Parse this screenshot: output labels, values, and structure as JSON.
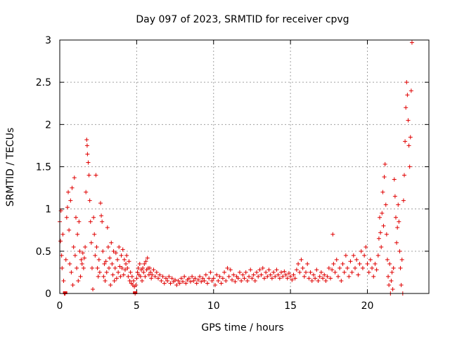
{
  "chart_data": {
    "type": "scatter",
    "title": "Day 097 of 2023, SRMTID for receiver cpvg",
    "xlabel": "GPS time / hours",
    "ylabel": "SRMTID / TECUs",
    "xlim": [
      0,
      24
    ],
    "ylim": [
      0,
      3
    ],
    "xticks": [
      0,
      5,
      10,
      15,
      20
    ],
    "yticks": [
      0,
      0.5,
      1,
      1.5,
      2,
      2.5,
      3
    ],
    "ytick_labels": [
      "0",
      "0.5",
      "1",
      "1.5",
      "2",
      "2.5",
      "3"
    ],
    "grid": true,
    "marker": "+",
    "color": "#e00000",
    "series": [
      {
        "name": "SRMTID",
        "points": [
          [
            0.0,
            0.85
          ],
          [
            0.05,
            0.62
          ],
          [
            0.08,
            0.98
          ],
          [
            0.12,
            0.45
          ],
          [
            0.15,
            0.3
          ],
          [
            0.2,
            0.7
          ],
          [
            0.25,
            0.15
          ],
          [
            0.3,
            0.0
          ],
          [
            0.35,
            0.0
          ],
          [
            0.4,
            0.4
          ],
          [
            0.45,
            0.9
          ],
          [
            0.5,
            1.02
          ],
          [
            0.55,
            1.2
          ],
          [
            0.6,
            0.75
          ],
          [
            0.65,
            0.35
          ],
          [
            0.7,
            1.1
          ],
          [
            0.75,
            0.25
          ],
          [
            0.8,
            1.25
          ],
          [
            0.85,
            0.1
          ],
          [
            0.9,
            0.55
          ],
          [
            0.95,
            1.37
          ],
          [
            1.0,
            0.45
          ],
          [
            1.05,
            0.9
          ],
          [
            1.1,
            0.3
          ],
          [
            1.15,
            0.7
          ],
          [
            1.2,
            0.15
          ],
          [
            1.25,
            0.85
          ],
          [
            1.3,
            0.5
          ],
          [
            1.35,
            0.2
          ],
          [
            1.4,
            0.4
          ],
          [
            1.45,
            0.35
          ],
          [
            1.5,
            0.48
          ],
          [
            1.55,
            0.3
          ],
          [
            1.6,
            0.42
          ],
          [
            1.65,
            0.55
          ],
          [
            1.7,
            1.2
          ],
          [
            1.75,
            1.82
          ],
          [
            1.78,
            1.75
          ],
          [
            1.8,
            1.65
          ],
          [
            1.85,
            1.55
          ],
          [
            1.9,
            1.4
          ],
          [
            1.95,
            1.1
          ],
          [
            2.0,
            0.85
          ],
          [
            2.05,
            0.6
          ],
          [
            2.1,
            0.3
          ],
          [
            2.15,
            0.05
          ],
          [
            2.2,
            0.9
          ],
          [
            2.25,
            0.7
          ],
          [
            2.3,
            0.45
          ],
          [
            2.35,
            1.4
          ],
          [
            2.4,
            0.55
          ],
          [
            2.45,
            0.3
          ],
          [
            2.5,
            0.2
          ],
          [
            2.55,
            0.4
          ],
          [
            2.6,
            0.25
          ],
          [
            2.65,
            1.07
          ],
          [
            2.7,
            0.92
          ],
          [
            2.75,
            0.85
          ],
          [
            2.8,
            0.5
          ],
          [
            2.85,
            0.2
          ],
          [
            2.9,
            0.35
          ],
          [
            2.95,
            0.15
          ],
          [
            3.0,
            0.38
          ],
          [
            3.05,
            0.25
          ],
          [
            3.1,
            0.78
          ],
          [
            3.15,
            0.55
          ],
          [
            3.2,
            0.3
          ],
          [
            3.25,
            0.42
          ],
          [
            3.3,
            0.1
          ],
          [
            3.35,
            0.6
          ],
          [
            3.4,
            0.35
          ],
          [
            3.45,
            0.22
          ],
          [
            3.5,
            0.5
          ],
          [
            3.55,
            0.15
          ],
          [
            3.6,
            0.3
          ],
          [
            3.65,
            0.48
          ],
          [
            3.7,
            0.18
          ],
          [
            3.75,
            0.4
          ],
          [
            3.8,
            0.25
          ],
          [
            3.85,
            0.55
          ],
          [
            3.9,
            0.32
          ],
          [
            3.95,
            0.2
          ],
          [
            4.0,
            0.45
          ],
          [
            4.05,
            0.3
          ],
          [
            4.1,
            0.52
          ],
          [
            4.15,
            0.22
          ],
          [
            4.2,
            0.4
          ],
          [
            4.25,
            0.28
          ],
          [
            4.3,
            0.35
          ],
          [
            4.35,
            0.45
          ],
          [
            4.4,
            0.3
          ],
          [
            4.45,
            0.2
          ],
          [
            4.5,
            0.38
          ],
          [
            4.55,
            0.15
          ],
          [
            4.6,
            0.25
          ],
          [
            4.65,
            0.12
          ],
          [
            4.7,
            0.2
          ],
          [
            4.75,
            0.1
          ],
          [
            4.8,
            0.15
          ],
          [
            4.85,
            0.08
          ],
          [
            4.9,
            0.0
          ],
          [
            4.95,
            0.1
          ],
          [
            5.0,
            0.18
          ],
          [
            5.05,
            0.25
          ],
          [
            5.1,
            0.3
          ],
          [
            5.15,
            0.22
          ],
          [
            5.2,
            0.35
          ],
          [
            5.25,
            0.2
          ],
          [
            5.3,
            0.28
          ],
          [
            5.35,
            0.15
          ],
          [
            5.4,
            0.3
          ],
          [
            5.45,
            0.25
          ],
          [
            5.5,
            0.35
          ],
          [
            5.55,
            0.2
          ],
          [
            5.6,
            0.38
          ],
          [
            5.65,
            0.28
          ],
          [
            5.7,
            0.42
          ],
          [
            5.75,
            0.3
          ],
          [
            5.8,
            0.22
          ],
          [
            5.85,
            0.3
          ],
          [
            5.9,
            0.25
          ],
          [
            5.95,
            0.18
          ],
          [
            6.0,
            0.22
          ],
          [
            6.1,
            0.28
          ],
          [
            6.2,
            0.2
          ],
          [
            6.3,
            0.25
          ],
          [
            6.4,
            0.18
          ],
          [
            6.5,
            0.22
          ],
          [
            6.6,
            0.15
          ],
          [
            6.7,
            0.2
          ],
          [
            6.8,
            0.12
          ],
          [
            6.9,
            0.18
          ],
          [
            7.0,
            0.15
          ],
          [
            7.1,
            0.2
          ],
          [
            7.2,
            0.12
          ],
          [
            7.3,
            0.18
          ],
          [
            7.4,
            0.14
          ],
          [
            7.5,
            0.16
          ],
          [
            7.6,
            0.1
          ],
          [
            7.7,
            0.15
          ],
          [
            7.8,
            0.12
          ],
          [
            7.9,
            0.18
          ],
          [
            8.0,
            0.14
          ],
          [
            8.1,
            0.2
          ],
          [
            8.2,
            0.12
          ],
          [
            8.3,
            0.16
          ],
          [
            8.4,
            0.18
          ],
          [
            8.5,
            0.14
          ],
          [
            8.6,
            0.2
          ],
          [
            8.7,
            0.15
          ],
          [
            8.8,
            0.18
          ],
          [
            8.9,
            0.12
          ],
          [
            9.0,
            0.16
          ],
          [
            9.1,
            0.2
          ],
          [
            9.2,
            0.14
          ],
          [
            9.3,
            0.18
          ],
          [
            9.4,
            0.15
          ],
          [
            9.5,
            0.22
          ],
          [
            9.6,
            0.12
          ],
          [
            9.7,
            0.18
          ],
          [
            9.8,
            0.25
          ],
          [
            9.9,
            0.15
          ],
          [
            10.0,
            0.18
          ],
          [
            10.1,
            0.1
          ],
          [
            10.2,
            0.22
          ],
          [
            10.3,
            0.15
          ],
          [
            10.4,
            0.2
          ],
          [
            10.5,
            0.12
          ],
          [
            10.6,
            0.18
          ],
          [
            10.7,
            0.25
          ],
          [
            10.8,
            0.15
          ],
          [
            10.9,
            0.3
          ],
          [
            11.0,
            0.2
          ],
          [
            11.1,
            0.28
          ],
          [
            11.2,
            0.16
          ],
          [
            11.3,
            0.22
          ],
          [
            11.4,
            0.14
          ],
          [
            11.5,
            0.2
          ],
          [
            11.6,
            0.18
          ],
          [
            11.7,
            0.25
          ],
          [
            11.8,
            0.15
          ],
          [
            11.9,
            0.22
          ],
          [
            12.0,
            0.18
          ],
          [
            12.1,
            0.25
          ],
          [
            12.2,
            0.15
          ],
          [
            12.3,
            0.2
          ],
          [
            12.4,
            0.28
          ],
          [
            12.5,
            0.18
          ],
          [
            12.6,
            0.22
          ],
          [
            12.7,
            0.15
          ],
          [
            12.8,
            0.25
          ],
          [
            12.9,
            0.2
          ],
          [
            13.0,
            0.28
          ],
          [
            13.1,
            0.22
          ],
          [
            13.2,
            0.3
          ],
          [
            13.3,
            0.18
          ],
          [
            13.4,
            0.25
          ],
          [
            13.5,
            0.2
          ],
          [
            13.6,
            0.28
          ],
          [
            13.7,
            0.22
          ],
          [
            13.8,
            0.18
          ],
          [
            13.9,
            0.25
          ],
          [
            14.0,
            0.2
          ],
          [
            14.1,
            0.28
          ],
          [
            14.2,
            0.22
          ],
          [
            14.3,
            0.18
          ],
          [
            14.4,
            0.25
          ],
          [
            14.5,
            0.2
          ],
          [
            14.6,
            0.26
          ],
          [
            14.7,
            0.22
          ],
          [
            14.8,
            0.18
          ],
          [
            14.9,
            0.24
          ],
          [
            15.0,
            0.2
          ],
          [
            15.1,
            0.16
          ],
          [
            15.2,
            0.22
          ],
          [
            15.3,
            0.18
          ],
          [
            15.4,
            0.28
          ],
          [
            15.5,
            0.35
          ],
          [
            15.6,
            0.25
          ],
          [
            15.7,
            0.4
          ],
          [
            15.8,
            0.3
          ],
          [
            15.9,
            0.2
          ],
          [
            16.0,
            0.25
          ],
          [
            16.1,
            0.35
          ],
          [
            16.2,
            0.18
          ],
          [
            16.3,
            0.25
          ],
          [
            16.4,
            0.15
          ],
          [
            16.5,
            0.22
          ],
          [
            16.6,
            0.18
          ],
          [
            16.7,
            0.28
          ],
          [
            16.8,
            0.15
          ],
          [
            16.9,
            0.2
          ],
          [
            17.0,
            0.25
          ],
          [
            17.1,
            0.18
          ],
          [
            17.2,
            0.22
          ],
          [
            17.3,
            0.15
          ],
          [
            17.4,
            0.2
          ],
          [
            17.5,
            0.3
          ],
          [
            17.6,
            0.18
          ],
          [
            17.7,
            0.28
          ],
          [
            17.75,
            0.7
          ],
          [
            17.8,
            0.35
          ],
          [
            17.9,
            0.25
          ],
          [
            18.0,
            0.4
          ],
          [
            18.1,
            0.2
          ],
          [
            18.2,
            0.3
          ],
          [
            18.3,
            0.15
          ],
          [
            18.4,
            0.35
          ],
          [
            18.5,
            0.25
          ],
          [
            18.6,
            0.45
          ],
          [
            18.7,
            0.3
          ],
          [
            18.8,
            0.2
          ],
          [
            18.9,
            0.38
          ],
          [
            19.0,
            0.25
          ],
          [
            19.1,
            0.45
          ],
          [
            19.2,
            0.3
          ],
          [
            19.3,
            0.4
          ],
          [
            19.4,
            0.22
          ],
          [
            19.5,
            0.35
          ],
          [
            19.6,
            0.5
          ],
          [
            19.7,
            0.3
          ],
          [
            19.8,
            0.45
          ],
          [
            19.9,
            0.55
          ],
          [
            20.0,
            0.35
          ],
          [
            20.1,
            0.25
          ],
          [
            20.2,
            0.4
          ],
          [
            20.3,
            0.3
          ],
          [
            20.4,
            0.2
          ],
          [
            20.5,
            0.35
          ],
          [
            20.6,
            0.28
          ],
          [
            20.7,
            0.45
          ],
          [
            20.75,
            0.65
          ],
          [
            20.8,
            0.9
          ],
          [
            20.85,
            0.72
          ],
          [
            20.9,
            0.55
          ],
          [
            20.95,
            0.95
          ],
          [
            21.0,
            1.2
          ],
          [
            21.05,
            0.8
          ],
          [
            21.1,
            1.38
          ],
          [
            21.15,
            1.53
          ],
          [
            21.2,
            1.05
          ],
          [
            21.25,
            0.7
          ],
          [
            21.3,
            0.4
          ],
          [
            21.35,
            0.2
          ],
          [
            21.4,
            0.1
          ],
          [
            21.45,
            0.35
          ],
          [
            21.5,
            0.0
          ],
          [
            21.55,
            0.15
          ],
          [
            21.6,
            0.25
          ],
          [
            21.65,
            0.05
          ],
          [
            21.7,
            0.3
          ],
          [
            21.75,
            1.35
          ],
          [
            21.8,
            1.15
          ],
          [
            21.85,
            0.9
          ],
          [
            21.9,
            0.6
          ],
          [
            21.95,
            0.78
          ],
          [
            22.0,
            1.05
          ],
          [
            22.05,
            0.85
          ],
          [
            22.1,
            0.5
          ],
          [
            22.15,
            0.3
          ],
          [
            22.2,
            0.1
          ],
          [
            22.25,
            0.4
          ],
          [
            22.3,
            0.0
          ],
          [
            22.35,
            1.1
          ],
          [
            22.4,
            1.4
          ],
          [
            22.45,
            1.8
          ],
          [
            22.5,
            2.2
          ],
          [
            22.55,
            2.5
          ],
          [
            22.6,
            2.35
          ],
          [
            22.65,
            2.05
          ],
          [
            22.7,
            1.75
          ],
          [
            22.75,
            1.5
          ],
          [
            22.8,
            1.85
          ],
          [
            22.85,
            2.4
          ],
          [
            22.9,
            2.97
          ]
        ]
      }
    ],
    "x_axis_markers": [
      0.35,
      4.9
    ]
  }
}
